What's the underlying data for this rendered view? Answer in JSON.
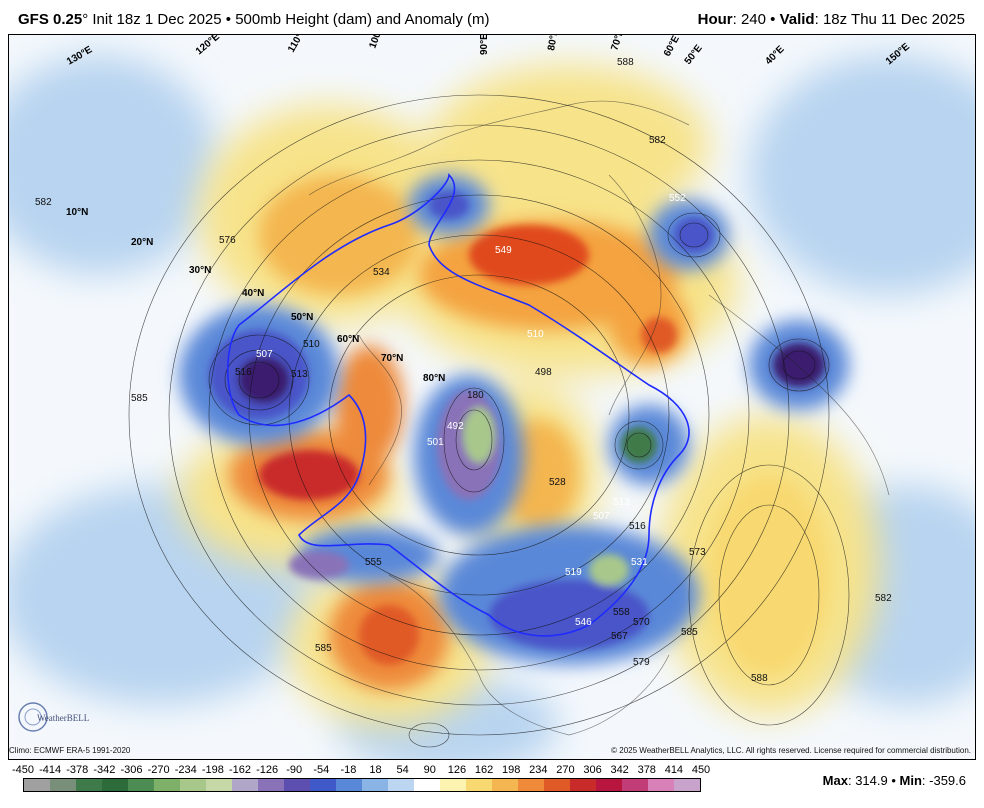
{
  "header": {
    "model": "GFS 0.25",
    "degree": "°",
    "init": " Init 18z 1 Dec 2025",
    "sep": " • ",
    "product": "500mb Height (dam) and Anomaly (m)",
    "hour_label": "Hour",
    "hour_value": ": 240",
    "sep2": " • ",
    "valid_label": "Valid",
    "valid_value": ": 18z Thu 11 Dec 2025"
  },
  "map": {
    "latitude_labels": [
      "10°N",
      "20°N",
      "30°N",
      "40°N",
      "50°N",
      "60°N",
      "70°N",
      "80°N"
    ],
    "longitude_labels": [
      "120°E",
      "110°E",
      "100°E",
      "90°E",
      "80°E",
      "70°E",
      "60°E",
      "50°E",
      "40°E",
      "130°E",
      "150°E",
      "180"
    ],
    "contour_labels": [
      "588",
      "582",
      "576",
      "549",
      "552",
      "513",
      "507",
      "516",
      "510",
      "501",
      "492",
      "498",
      "510",
      "519",
      "546",
      "531",
      "507",
      "513",
      "516",
      "555",
      "585",
      "585",
      "573",
      "570",
      "579",
      "567",
      "558",
      "588",
      "582",
      "582",
      "585",
      "528",
      "534"
    ],
    "colors": {
      "deep_negative": "#3b1f6e",
      "strong_negative": "#4a54c8",
      "mid_negative": "#6c9bdc",
      "weak_negative": "#b8d4f0",
      "weak_positive": "#f7e38a",
      "mid_positive": "#f4a341",
      "strong_positive": "#e0481f",
      "very_strong_positive": "#c2183a",
      "zero_line": "#1f2bff"
    },
    "logo_text": "WeatherBELL"
  },
  "footer": {
    "climo": "Climo: ECMWF ERA-5 1991-2020",
    "copyright": "© 2025 WeatherBELL Analytics, LLC. All rights reserved. License required for commercial distribution.",
    "colorbar_ticks": [
      "-450",
      "-414",
      "-378",
      "-342",
      "-306",
      "-270",
      "-234",
      "-198",
      "-162",
      "-126",
      "-90",
      "-54",
      "-18",
      "18",
      "54",
      "90",
      "126",
      "162",
      "198",
      "234",
      "270",
      "306",
      "342",
      "378",
      "414",
      "450"
    ],
    "colorbar_colors": [
      "#a0a0a0",
      "#7a8f7a",
      "#3f7a4a",
      "#2e6b3a",
      "#4d8c52",
      "#7fb06a",
      "#a8c88b",
      "#c6d8a8",
      "#b0a6c8",
      "#8a72b8",
      "#5c4fb0",
      "#3f5ac8",
      "#5a88d8",
      "#8ab4e6",
      "#bcd6f2",
      "#ffffff",
      "#fdf3b0",
      "#f8d870",
      "#f4b650",
      "#ee8a3a",
      "#e05a28",
      "#c92a2a",
      "#b8163e",
      "#c23c78",
      "#d880b8",
      "#c8a4cc"
    ],
    "max_label": "Max",
    "max_value": ": 314.9",
    "sep": " • ",
    "min_label": "Min",
    "min_value": ": -359.6"
  }
}
